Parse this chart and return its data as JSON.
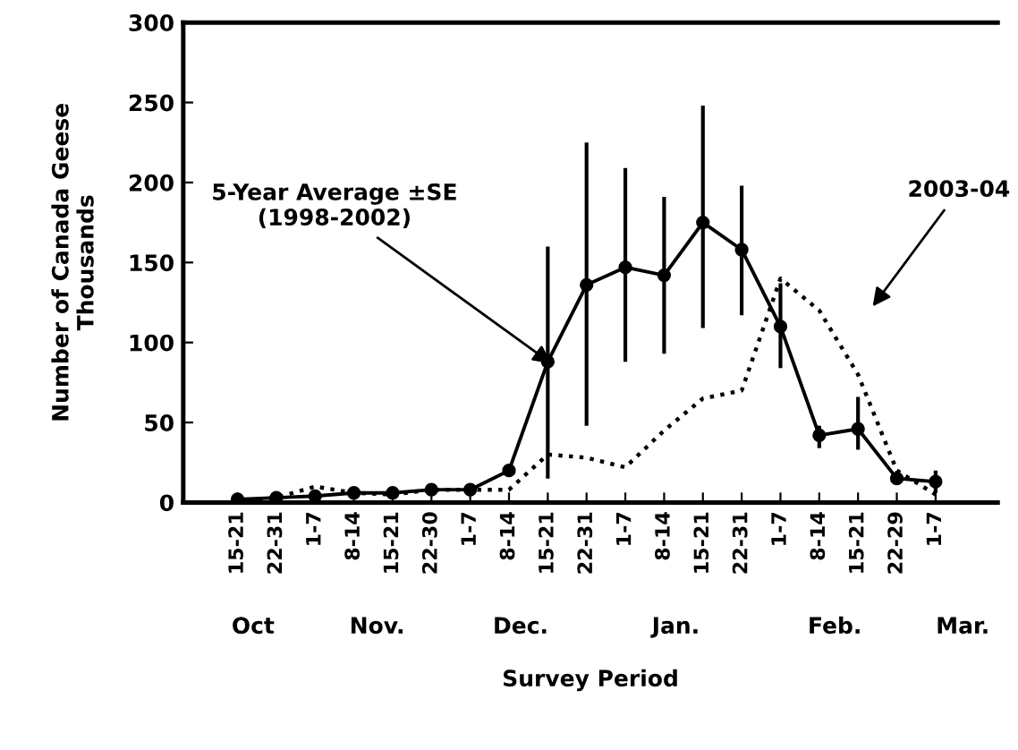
{
  "chart_data": {
    "type": "line",
    "xlabel": "Survey Period",
    "ylabel": "Number of Canada Geese\nThousands",
    "categories": [
      "15-21",
      "22-31",
      "1-7",
      "8-14",
      "15-21",
      "22-30",
      "1-7",
      "8-14",
      "15-21",
      "22-31",
      "1-7",
      "8-14",
      "15-21",
      "22-31",
      "1-7",
      "8-14",
      "15-21",
      "22-29",
      "1-7"
    ],
    "series": [
      {
        "name": "5-Year Average ±SE\n(1998-2002)",
        "color": "#000000",
        "marker": "circle",
        "line_style": "solid",
        "values": [
          2,
          3,
          4,
          6,
          6,
          8,
          8,
          20,
          88,
          136,
          147,
          142,
          175,
          158,
          110,
          42,
          46,
          15,
          13
        ],
        "errors": [
          null,
          null,
          null,
          null,
          null,
          null,
          null,
          null,
          [
            15,
            160
          ],
          [
            48,
            225
          ],
          [
            88,
            209
          ],
          [
            93,
            191
          ],
          [
            109,
            248
          ],
          [
            117,
            198
          ],
          [
            84,
            137
          ],
          [
            34,
            48
          ],
          [
            33,
            66
          ],
          null,
          [
            6,
            20
          ]
        ]
      },
      {
        "name": "2003-04",
        "color": "#000000",
        "marker": "none",
        "line_style": "dotted",
        "values": [
          1,
          3,
          10,
          6,
          5,
          8,
          8,
          8,
          30,
          28,
          22,
          45,
          65,
          70,
          140,
          120,
          80,
          20,
          5
        ]
      }
    ],
    "ylim": [
      0,
      300
    ],
    "yticks": [
      0,
      50,
      100,
      150,
      200,
      250,
      300
    ],
    "grid": false,
    "legend": false,
    "annotations": [
      "Oct",
      "Nov.",
      "Dec.",
      "Jan.",
      "Feb.",
      "Mar."
    ]
  }
}
